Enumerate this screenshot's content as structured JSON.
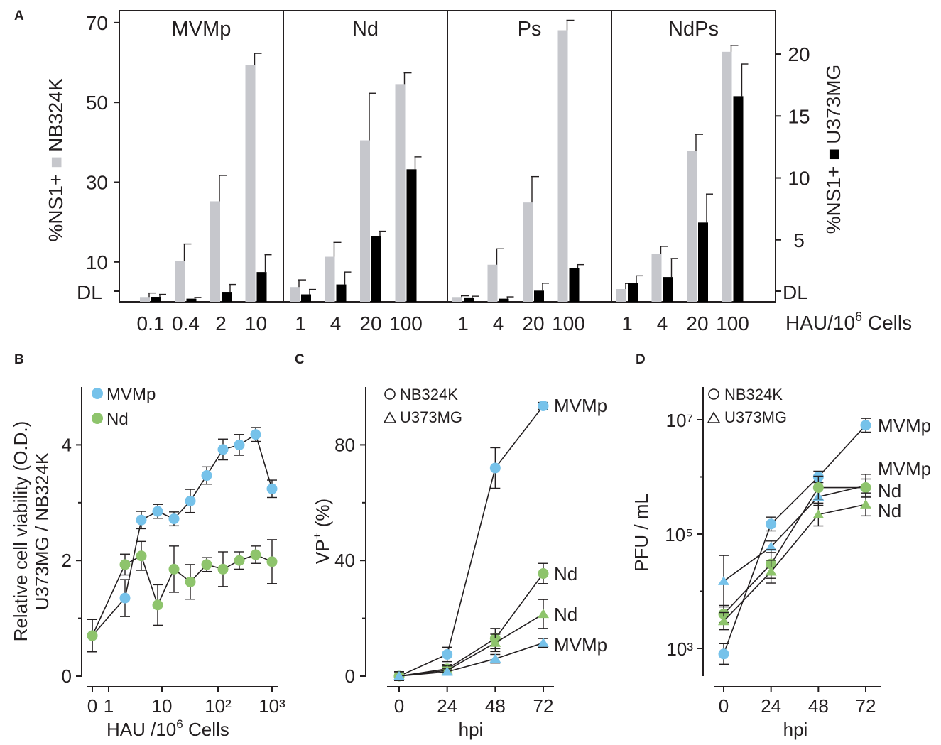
{
  "colors": {
    "gray_bar": "#c6c7cc",
    "black_bar": "#000000",
    "blue": "#76c2ea",
    "green": "#8ec46c",
    "ink": "#231f20"
  },
  "chart_data": [
    {
      "panel": "A",
      "type": "bar",
      "left_axis_label_prefix": "%NS1+",
      "left_axis_label_series": "NB324K",
      "right_axis_label_prefix": "%NS1+",
      "right_axis_label_series": "U373MG",
      "ylim_left": [
        0,
        73
      ],
      "ylim_right": [
        0,
        23.5
      ],
      "yticks_left": [
        10,
        30,
        50,
        70
      ],
      "yticks_right": [
        5,
        10,
        15,
        20
      ],
      "dl_label": "DL",
      "xlabel_prefix": "HAU/10",
      "xlabel_sup": "6",
      "xlabel_suffix": " Cells",
      "groups": [
        {
          "name": "MVMp",
          "categories": [
            "0.1",
            "0.4",
            "2",
            "10"
          ],
          "NB324K": [
            1.2,
            10.3,
            25.2,
            59.3
          ],
          "NB324K_err": [
            1.0,
            4.2,
            6.5,
            3.0
          ],
          "U373MG": [
            0.4,
            0.25,
            0.8,
            2.4
          ],
          "U373MG_err": [
            0.2,
            0.1,
            0.6,
            1.4
          ]
        },
        {
          "name": "Nd",
          "categories": [
            "1",
            "4",
            "20",
            "100"
          ],
          "NB324K": [
            3.7,
            11.3,
            40.5,
            54.6
          ],
          "NB324K_err": [
            1.8,
            3.6,
            11.8,
            2.8
          ],
          "U373MG": [
            0.6,
            1.4,
            5.3,
            10.7
          ],
          "U373MG_err": [
            0.4,
            1.0,
            0.4,
            1.0
          ]
        },
        {
          "name": "Ps",
          "categories": [
            "1",
            "4",
            "20",
            "100"
          ],
          "NB324K": [
            1.2,
            9.3,
            24.9,
            68.1
          ],
          "NB324K_err": [
            0.3,
            4.0,
            6.5,
            2.5
          ],
          "U373MG": [
            0.35,
            0.25,
            0.9,
            2.7
          ],
          "U373MG_err": [
            0.1,
            0.15,
            0.6,
            0.3
          ]
        },
        {
          "name": "NdPs",
          "categories": [
            "1",
            "4",
            "20",
            "100"
          ],
          "NB324K": [
            3.2,
            12.0,
            37.8,
            62.7
          ],
          "NB324K_err": [
            1.4,
            1.9,
            4.2,
            1.6
          ],
          "U373MG": [
            1.5,
            2.0,
            6.4,
            16.6
          ],
          "U373MG_err": [
            0.6,
            1.5,
            2.3,
            2.6
          ]
        }
      ]
    },
    {
      "panel": "B",
      "type": "line",
      "ylabel_line1": "Relative cell viability (O.D.)",
      "ylabel_line2": "U373MG / NB324K",
      "xlabel_prefix": "HAU /10",
      "xlabel_sup": "6",
      "xlabel_suffix": " Cells",
      "ylim": [
        0,
        5
      ],
      "yticks": [
        "0",
        "2",
        "4"
      ],
      "xticks": [
        "0",
        "1",
        "10",
        "10²",
        "10³"
      ],
      "series": [
        {
          "name": "MVMp",
          "color": "#76c2ea",
          "x": [
            0,
            2,
            4,
            8,
            16,
            32,
            64,
            128,
            256,
            512,
            1024
          ],
          "y": [
            0.7,
            1.35,
            2.7,
            2.85,
            2.72,
            3.03,
            3.47,
            3.92,
            4.0,
            4.18,
            3.24
          ],
          "err": [
            0.28,
            0.32,
            0.15,
            0.12,
            0.12,
            0.2,
            0.15,
            0.18,
            0.18,
            0.12,
            0.15
          ]
        },
        {
          "name": "Nd",
          "color": "#8ec46c",
          "x": [
            0,
            2,
            4,
            8,
            16,
            32,
            64,
            128,
            256,
            512,
            1024
          ],
          "y": [
            0.7,
            1.93,
            2.08,
            1.23,
            1.85,
            1.63,
            1.93,
            1.85,
            2.0,
            2.1,
            1.98
          ],
          "err": [
            0.28,
            0.18,
            0.25,
            0.35,
            0.4,
            0.3,
            0.12,
            0.3,
            0.15,
            0.15,
            0.38
          ]
        }
      ],
      "legend": [
        "MVMp",
        "Nd"
      ]
    },
    {
      "panel": "C",
      "type": "line",
      "ylabel": "VP",
      "ylabel_sup": "+",
      "ylabel_suffix": " (%)",
      "xlabel": "hpi",
      "ylim": [
        0,
        100
      ],
      "yticks": [
        "0",
        "40",
        "80"
      ],
      "xticks": [
        "0",
        "24",
        "48",
        "72"
      ],
      "legend": [
        "NB324K",
        "U373MG"
      ],
      "series": [
        {
          "name": "MVMp",
          "cell": "NB324K",
          "marker": "circle",
          "color": "#76c2ea",
          "x": [
            0,
            24,
            48,
            72
          ],
          "y": [
            0,
            7.5,
            72,
            93.5
          ],
          "err": [
            1.5,
            2.5,
            7,
            1.2
          ]
        },
        {
          "name": "Nd",
          "cell": "NB324K",
          "marker": "circle",
          "color": "#8ec46c",
          "x": [
            0,
            24,
            48,
            72
          ],
          "y": [
            0,
            2.5,
            13,
            35.5
          ],
          "err": [
            1.5,
            1.5,
            3.5,
            3.5
          ]
        },
        {
          "name": "Nd",
          "cell": "U373MG",
          "marker": "triangle",
          "color": "#8ec46c",
          "x": [
            0,
            24,
            48,
            72
          ],
          "y": [
            0,
            2.0,
            11.5,
            21.5
          ],
          "err": [
            1.5,
            1.5,
            3.0,
            5.0
          ]
        },
        {
          "name": "MVMp",
          "cell": "U373MG",
          "marker": "triangle",
          "color": "#76c2ea",
          "x": [
            0,
            24,
            48,
            72
          ],
          "y": [
            0,
            1.5,
            6,
            11.5
          ],
          "err": [
            1.5,
            1.0,
            1.5,
            1.5
          ]
        }
      ],
      "annotations": [
        "MVMp",
        "Nd",
        "Nd",
        "MVMp"
      ]
    },
    {
      "panel": "D",
      "type": "line",
      "yscale": "log",
      "ylabel": "PFU / mL",
      "xlabel": "hpi",
      "ylim": [
        200,
        20000000
      ],
      "yticks": [
        "10³",
        "10⁵",
        "10⁷"
      ],
      "xticks": [
        "0",
        "24",
        "48",
        "72"
      ],
      "legend": [
        "NB324K",
        "U373MG"
      ],
      "series": [
        {
          "name": "MVMp",
          "cell": "NB324K",
          "marker": "circle",
          "color": "#76c2ea",
          "x": [
            0,
            24,
            48,
            72
          ],
          "y": [
            800,
            150000,
            1000000,
            8000000
          ],
          "err_log": [
            0.18,
            0.12,
            0.1,
            0.12
          ]
        },
        {
          "name": "MVMp",
          "cell": "U373MG",
          "marker": "triangle",
          "color": "#76c2ea",
          "x": [
            0,
            24,
            48,
            72
          ],
          "y": [
            15000,
            60000,
            450000,
            700000
          ],
          "err_log": [
            0.45,
            0.1,
            0.15,
            0.2
          ]
        },
        {
          "name": "Nd",
          "cell": "NB324K",
          "marker": "circle",
          "color": "#8ec46c",
          "x": [
            0,
            24,
            48,
            72
          ],
          "y": [
            4000,
            30000,
            650000,
            650000
          ],
          "err_log": [
            0.15,
            0.25,
            0.2,
            0.15
          ]
        },
        {
          "name": "Nd",
          "cell": "U373MG",
          "marker": "triangle",
          "color": "#8ec46c",
          "x": [
            0,
            24,
            48,
            72
          ],
          "y": [
            3000,
            22000,
            220000,
            330000
          ],
          "err_log": [
            0.15,
            0.2,
            0.2,
            0.2
          ]
        }
      ],
      "annotations": [
        "MVMp",
        "MVMp",
        "Nd",
        "Nd"
      ]
    }
  ]
}
